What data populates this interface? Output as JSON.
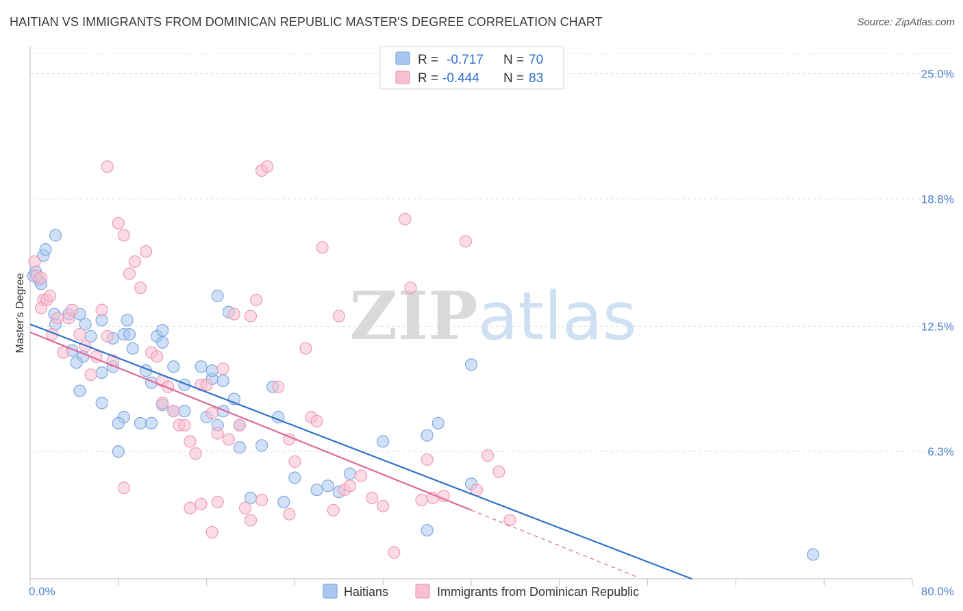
{
  "chart_data": {
    "type": "scatter",
    "title": "HAITIAN VS IMMIGRANTS FROM DOMINICAN REPUBLIC MASTER'S DEGREE CORRELATION CHART",
    "source": "Source: ZipAtlas.com",
    "xlabel": "",
    "ylabel": "Master's Degree",
    "xlim": [
      0,
      80
    ],
    "ylim": [
      0,
      26
    ],
    "x_tick_labels": [
      "0.0%",
      "80.0%"
    ],
    "y_ticks": [
      6.3,
      12.5,
      18.8,
      25.0
    ],
    "y_tick_labels": [
      "6.3%",
      "12.5%",
      "18.8%",
      "25.0%"
    ],
    "grid": true,
    "watermark": "ZIPatlas",
    "legend_position": "top-center",
    "stats_legend": [
      {
        "r_label": "R =",
        "r_value": "-0.717",
        "n_label": "N =",
        "n_value": "70"
      },
      {
        "r_label": "R =",
        "r_value": "-0.444",
        "n_label": "N =",
        "n_value": "83"
      }
    ],
    "series": [
      {
        "name": "Haitians",
        "color": "#a9c6ef",
        "stroke": "#7fa8e0",
        "line_color": "#2f72cc",
        "trend": {
          "x0": 0,
          "y0": 12.6,
          "x1": 60,
          "y1": 0
        },
        "points": [
          [
            0.3,
            15.0
          ],
          [
            0.5,
            15.2
          ],
          [
            0.8,
            14.8
          ],
          [
            1.2,
            16.0
          ],
          [
            1.4,
            16.3
          ],
          [
            2.3,
            17.0
          ],
          [
            2.2,
            13.1
          ],
          [
            3.5,
            13.1
          ],
          [
            4.5,
            13.1
          ],
          [
            2.3,
            12.6
          ],
          [
            3.8,
            11.3
          ],
          [
            4.8,
            11.0
          ],
          [
            4.2,
            10.7
          ],
          [
            5.0,
            12.6
          ],
          [
            6.5,
            12.8
          ],
          [
            7.5,
            11.9
          ],
          [
            5.5,
            12.0
          ],
          [
            8.5,
            12.1
          ],
          [
            9.0,
            12.1
          ],
          [
            8.8,
            12.8
          ],
          [
            9.3,
            11.4
          ],
          [
            10.5,
            10.3
          ],
          [
            6.5,
            10.2
          ],
          [
            7.5,
            10.5
          ],
          [
            11.0,
            9.7
          ],
          [
            11.5,
            12.0
          ],
          [
            12.0,
            11.7
          ],
          [
            12.0,
            12.3
          ],
          [
            13.0,
            10.5
          ],
          [
            14.0,
            9.6
          ],
          [
            15.5,
            10.5
          ],
          [
            16.5,
            9.9
          ],
          [
            16.0,
            8.0
          ],
          [
            17.5,
            9.8
          ],
          [
            17.0,
            14.0
          ],
          [
            16.5,
            10.3
          ],
          [
            18.0,
            13.2
          ],
          [
            18.5,
            8.9
          ],
          [
            17.5,
            8.3
          ],
          [
            17.0,
            7.6
          ],
          [
            19.0,
            7.6
          ],
          [
            14.0,
            8.3
          ],
          [
            13.0,
            8.3
          ],
          [
            12.0,
            8.6
          ],
          [
            10.0,
            7.7
          ],
          [
            11.0,
            7.7
          ],
          [
            8.5,
            8.0
          ],
          [
            8.0,
            7.7
          ],
          [
            8.0,
            6.3
          ],
          [
            4.5,
            9.3
          ],
          [
            6.5,
            8.7
          ],
          [
            22.0,
            9.5
          ],
          [
            22.5,
            8.0
          ],
          [
            24.0,
            5.0
          ],
          [
            19.0,
            6.5
          ],
          [
            21.0,
            6.6
          ],
          [
            20.0,
            4.0
          ],
          [
            23.0,
            3.8
          ],
          [
            26.0,
            4.4
          ],
          [
            27.0,
            4.6
          ],
          [
            28.0,
            4.3
          ],
          [
            29.0,
            5.2
          ],
          [
            32.0,
            6.8
          ],
          [
            36.0,
            7.1
          ],
          [
            37.0,
            7.7
          ],
          [
            40.0,
            10.6
          ],
          [
            40.0,
            4.7
          ],
          [
            36.0,
            2.4
          ],
          [
            71.0,
            1.2
          ],
          [
            1.0,
            14.6
          ]
        ]
      },
      {
        "name": "Immigrants from Dominican Republic",
        "color": "#f7bfd0",
        "stroke": "#ef9ab6",
        "line_color": "#e0679a",
        "trend": {
          "x0": 0,
          "y0": 12.2,
          "x1": 40,
          "y1": 3.4
        },
        "trend_ext": {
          "x0": 40,
          "y0": 3.4,
          "x1": 55,
          "y1": 0.1
        },
        "points": [
          [
            0.4,
            15.7
          ],
          [
            0.6,
            15.0
          ],
          [
            1.0,
            14.9
          ],
          [
            1.2,
            13.8
          ],
          [
            1.5,
            13.8
          ],
          [
            1.8,
            14.0
          ],
          [
            1.0,
            13.4
          ],
          [
            2.0,
            12.1
          ],
          [
            2.5,
            12.9
          ],
          [
            3.0,
            11.2
          ],
          [
            3.5,
            12.9
          ],
          [
            3.8,
            13.3
          ],
          [
            4.5,
            12.1
          ],
          [
            5.0,
            11.5
          ],
          [
            5.5,
            10.1
          ],
          [
            6.0,
            11.0
          ],
          [
            6.5,
            13.3
          ],
          [
            7.0,
            12.0
          ],
          [
            7.5,
            10.8
          ],
          [
            7.0,
            20.4
          ],
          [
            8.0,
            17.6
          ],
          [
            8.5,
            17.0
          ],
          [
            9.5,
            15.7
          ],
          [
            10.0,
            14.4
          ],
          [
            9.0,
            15.1
          ],
          [
            10.5,
            16.2
          ],
          [
            11.0,
            11.2
          ],
          [
            11.5,
            11.0
          ],
          [
            12.0,
            9.8
          ],
          [
            12.5,
            9.5
          ],
          [
            13.0,
            8.3
          ],
          [
            12.0,
            8.7
          ],
          [
            13.5,
            7.6
          ],
          [
            14.0,
            7.6
          ],
          [
            14.5,
            6.8
          ],
          [
            15.0,
            6.2
          ],
          [
            15.5,
            9.6
          ],
          [
            16.0,
            9.6
          ],
          [
            16.5,
            8.2
          ],
          [
            17.0,
            7.2
          ],
          [
            17.5,
            10.4
          ],
          [
            18.0,
            6.9
          ],
          [
            18.5,
            13.1
          ],
          [
            19.0,
            7.6
          ],
          [
            20.0,
            13.0
          ],
          [
            20.5,
            13.8
          ],
          [
            21.0,
            20.2
          ],
          [
            21.5,
            20.4
          ],
          [
            22.5,
            9.5
          ],
          [
            23.5,
            6.9
          ],
          [
            24.0,
            5.8
          ],
          [
            25.0,
            11.4
          ],
          [
            25.5,
            8.0
          ],
          [
            26.0,
            7.8
          ],
          [
            26.5,
            16.4
          ],
          [
            27.5,
            3.4
          ],
          [
            28.0,
            13.0
          ],
          [
            28.5,
            4.4
          ],
          [
            29.0,
            4.6
          ],
          [
            30.0,
            5.1
          ],
          [
            31.0,
            4.0
          ],
          [
            32.0,
            3.6
          ],
          [
            33.0,
            1.3
          ],
          [
            34.0,
            17.8
          ],
          [
            34.5,
            14.4
          ],
          [
            35.5,
            3.9
          ],
          [
            36.0,
            5.9
          ],
          [
            36.5,
            4.0
          ],
          [
            37.5,
            4.1
          ],
          [
            39.5,
            16.7
          ],
          [
            40.5,
            4.4
          ],
          [
            41.5,
            6.1
          ],
          [
            42.5,
            5.3
          ],
          [
            43.5,
            2.9
          ],
          [
            14.5,
            3.5
          ],
          [
            15.5,
            3.7
          ],
          [
            16.5,
            2.3
          ],
          [
            17.0,
            3.8
          ],
          [
            19.5,
            3.5
          ],
          [
            20.0,
            2.9
          ],
          [
            21.0,
            3.9
          ],
          [
            23.5,
            3.2
          ],
          [
            8.5,
            4.5
          ]
        ]
      }
    ]
  },
  "bottom_legend": [
    "Haitians",
    "Immigrants from Dominican Republic"
  ]
}
